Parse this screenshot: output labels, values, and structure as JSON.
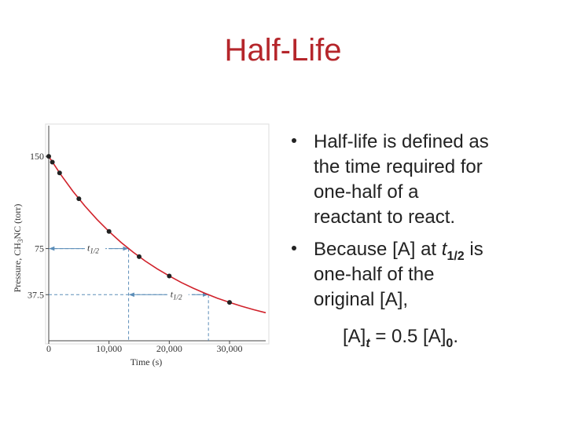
{
  "title": "Half-Life",
  "bullets": [
    {
      "lines": [
        "Half-life is defined as",
        "the time required for",
        "one-half of a",
        "reactant to react."
      ]
    },
    {
      "lead": [
        "Because [A] at ",
        "t",
        "1/2",
        " is"
      ],
      "lines": [
        "one-half of the",
        "original [A],"
      ]
    }
  ],
  "formula": [
    "[A]",
    "t",
    " = 0.5 [A]",
    "0",
    "."
  ],
  "chart_data": {
    "type": "line",
    "x_label": "Time (s)",
    "y_label": [
      "Pressure, CH",
      "3",
      "NC (torr)"
    ],
    "xlim": [
      0,
      36000
    ],
    "ylim": [
      0,
      175
    ],
    "xticks": [
      0,
      {
        "value": 10000,
        "label": "10,000"
      },
      {
        "value": 20000,
        "label": "20,000"
      },
      {
        "value": 30000,
        "label": "30,000"
      }
    ],
    "yticks": [
      37.5,
      75,
      150
    ],
    "series": [
      {
        "color": "#d0212a",
        "x": [
          0,
          2000,
          4000,
          6000,
          8000,
          10000,
          12000,
          14000,
          16000,
          18000,
          20000,
          22000,
          24000,
          26000,
          28000,
          30000,
          32000,
          34000,
          36000
        ],
        "values": [
          150,
          135.1,
          121.7,
          109.6,
          98.7,
          88.9,
          80.0,
          72.1,
          64.9,
          58.5,
          52.7,
          47.4,
          42.7,
          38.5,
          34.6,
          31.2,
          28.1,
          25.3,
          22.8
        ]
      },
      {
        "color": "#222222",
        "markers": true,
        "x": [
          0,
          600,
          1800,
          5000,
          10000,
          15000,
          20000,
          30000
        ],
        "values": [
          150,
          145.3,
          136.5,
          115.5,
          88.9,
          68.4,
          52.7,
          31.2
        ]
      }
    ],
    "half_life_markers": [
      {
        "y": 75,
        "x_start": 0,
        "x_end": 13250,
        "label": "t",
        "label_sub": "1/2",
        "label_x": 6000
      },
      {
        "y": 37.5,
        "x_start": 13250,
        "x_end": 26500,
        "label": "t",
        "label_sub": "1/2",
        "label_x": 19800
      }
    ],
    "marker_color": "#5b8db8"
  }
}
